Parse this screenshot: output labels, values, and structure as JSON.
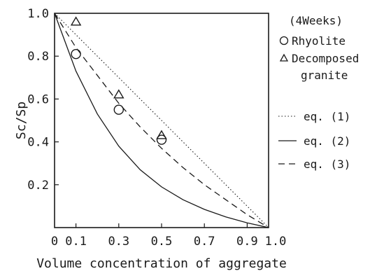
{
  "chart_data": {
    "type": "scatter",
    "xlabel": "Volume concentration of aggregate",
    "ylabel": "Sc/Sp",
    "xlim": [
      0,
      1.0
    ],
    "ylim": [
      0,
      1.0
    ],
    "x_ticks": [
      0,
      0.1,
      0.3,
      0.5,
      0.7,
      0.9,
      1.0
    ],
    "x_tick_labels": [
      "0",
      "0.1",
      "0.3",
      "0.5",
      "0.7",
      "0.9",
      "1.0"
    ],
    "y_ticks": [
      0.2,
      0.4,
      0.6,
      0.8,
      1.0
    ],
    "y_tick_labels": [
      "0.2",
      "0.4",
      "0.6",
      "0.8",
      "1.0"
    ],
    "grid": false,
    "legend_position": "right",
    "legend_header": "(4Weeks)",
    "series": [
      {
        "name": "Rhyolite",
        "marker": "circle",
        "points": [
          {
            "x": 0.1,
            "y": 0.81
          },
          {
            "x": 0.3,
            "y": 0.55
          },
          {
            "x": 0.5,
            "y": 0.41
          }
        ]
      },
      {
        "name": "Decomposed granite",
        "marker": "triangle",
        "points": [
          {
            "x": 0.1,
            "y": 0.96
          },
          {
            "x": 0.3,
            "y": 0.62
          },
          {
            "x": 0.5,
            "y": 0.43
          }
        ]
      }
    ],
    "curves": [
      {
        "name": "eq. (1)",
        "style": "dotted",
        "x": [
          0,
          0.1,
          0.2,
          0.3,
          0.4,
          0.5,
          0.6,
          0.7,
          0.8,
          0.9,
          1.0
        ],
        "y": [
          1.0,
          0.9,
          0.8,
          0.7,
          0.6,
          0.5,
          0.4,
          0.3,
          0.2,
          0.1,
          0.0
        ]
      },
      {
        "name": "eq. (2)",
        "style": "solid",
        "x": [
          0,
          0.1,
          0.2,
          0.3,
          0.4,
          0.5,
          0.6,
          0.7,
          0.8,
          0.9,
          1.0
        ],
        "y": [
          1.0,
          0.73,
          0.53,
          0.38,
          0.27,
          0.19,
          0.13,
          0.085,
          0.05,
          0.022,
          0.0
        ]
      },
      {
        "name": "eq. (3)",
        "style": "dashed",
        "x": [
          0,
          0.1,
          0.2,
          0.3,
          0.4,
          0.5,
          0.6,
          0.7,
          0.8,
          0.9,
          1.0
        ],
        "y": [
          1.0,
          0.84,
          0.71,
          0.58,
          0.47,
          0.37,
          0.28,
          0.2,
          0.13,
          0.06,
          0.0
        ]
      }
    ],
    "legend_labels": {
      "rhyolite": "Rhyolite",
      "granite_line1": "Decomposed",
      "granite_line2": "granite",
      "eq1": "eq. (1)",
      "eq2": "eq. (2)",
      "eq3": "eq. (3)"
    }
  }
}
